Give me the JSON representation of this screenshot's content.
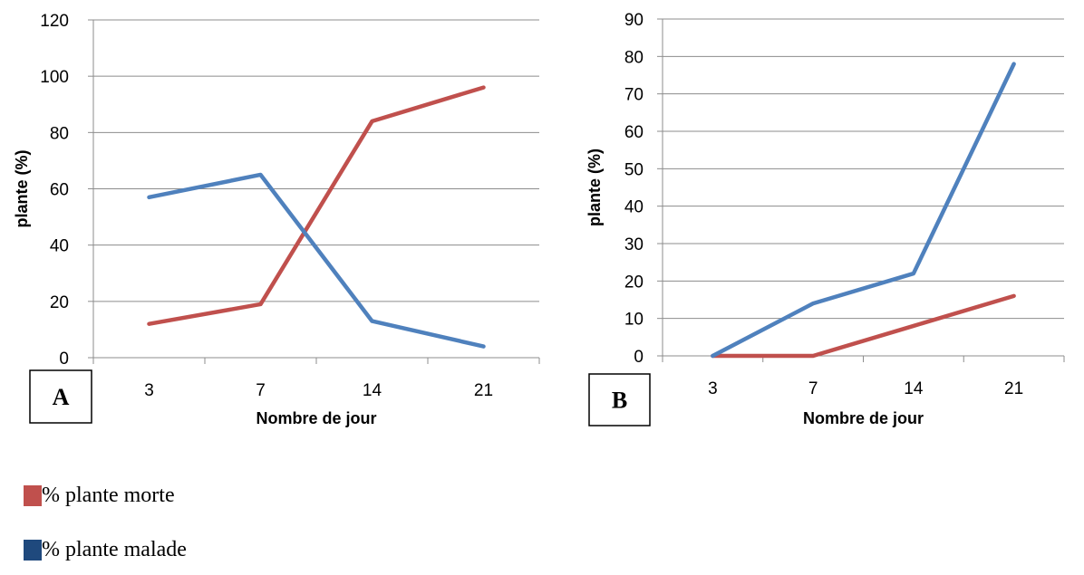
{
  "chart_data": [
    {
      "type": "line",
      "panel_label": "A",
      "categories": [
        "3",
        "7",
        "14",
        "21"
      ],
      "ylabel": "plante (%)",
      "xlabel": "Nombre de jour",
      "ylim": [
        0,
        120
      ],
      "yticks": [
        "0",
        "20",
        "40",
        "60",
        "80",
        "100",
        "120"
      ],
      "grid": true,
      "series": [
        {
          "name": "% plante morte",
          "color": "#c0504d",
          "values": [
            12,
            19,
            84,
            96
          ]
        },
        {
          "name": "% plante malade",
          "color": "#4f81bd",
          "values": [
            57,
            65,
            13,
            4
          ]
        }
      ]
    },
    {
      "type": "line",
      "panel_label": "B",
      "categories": [
        "3",
        "7",
        "14",
        "21"
      ],
      "ylabel": "plante (%)",
      "xlabel": "Nombre de jour",
      "ylim": [
        0,
        90
      ],
      "yticks": [
        "0",
        "10",
        "20",
        "30",
        "40",
        "50",
        "60",
        "70",
        "80",
        "90"
      ],
      "grid": true,
      "series": [
        {
          "name": "% plante morte",
          "color": "#c0504d",
          "values": [
            0,
            0,
            8,
            16
          ]
        },
        {
          "name": "% plante malade",
          "color": "#4f81bd",
          "values": [
            0,
            14,
            22,
            78
          ]
        }
      ]
    }
  ],
  "legend": [
    {
      "label": "% plante morte",
      "color": "#c0504d"
    },
    {
      "label": "% plante malade",
      "color": "#1f497d"
    }
  ]
}
